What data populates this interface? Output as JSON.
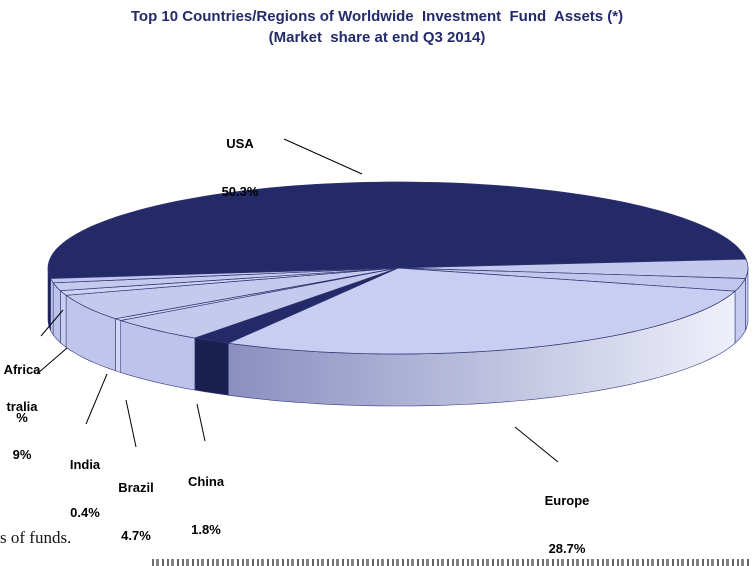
{
  "footer": {
    "visible_fragment": "s of funds."
  },
  "chart_data": {
    "type": "pie",
    "style": "3d",
    "title": "Top 10 Countries/Regions of Worldwide  Investment  Fund  Assets (*)",
    "subtitle": "(Market  share at end Q3 2014)",
    "unit": "percent market share",
    "direction": "clockwise",
    "start_angle_deg": 187,
    "legend": "none (direct labels with leader lines)",
    "colors": {
      "dark_navy": "#232A67",
      "lavender": "#C5C9EE",
      "title_text": "#232B6B",
      "label_text": "#000000"
    },
    "europe_side_gradient": [
      "#8A8FC0",
      "#EEF0FB"
    ],
    "slices": [
      {
        "name": "usa",
        "label_lines": [
          "USA",
          "50.3%"
        ],
        "pct": 50.3,
        "estimated": false,
        "top": "#232A67",
        "side": "#1B2152"
      },
      {
        "name": "unlabeled-right-1",
        "label_lines": null,
        "pct": 3.6,
        "estimated": true,
        "top": "#C5C9EE",
        "side": "#CBD0F1"
      },
      {
        "name": "unlabeled-right-2",
        "label_lines": null,
        "pct": 2.4,
        "estimated": true,
        "top": "#C2C6EC",
        "side": "#C7CCEF"
      },
      {
        "name": "europe",
        "label_lines": [
          "Europe",
          "28.7%"
        ],
        "pct": 28.7,
        "estimated": false,
        "top": "#C9CDF1",
        "side": "europe-gradient"
      },
      {
        "name": "china",
        "label_lines": [
          "China",
          "1.8%"
        ],
        "pct": 1.8,
        "estimated": false,
        "top": "#232A67",
        "side": "#191F4E"
      },
      {
        "name": "brazil",
        "label_lines": [
          "Brazil",
          "4.7%"
        ],
        "pct": 4.7,
        "estimated": false,
        "top": "#C5C9EE",
        "side": "#BEC3EB"
      },
      {
        "name": "india",
        "label_lines": [
          "India",
          "0.4%"
        ],
        "pct": 0.4,
        "estimated": false,
        "top": "#CDD1F3",
        "side": "#D3D6F4"
      },
      {
        "name": "australia",
        "label_lines": [
          "tralia",
          "9%"
        ],
        "pct": 4.9,
        "estimated": true,
        "top": "#C5C9EE",
        "side": "#C0C5EC"
      },
      {
        "name": "africa",
        "label_lines": [
          "Africa",
          "%"
        ],
        "pct": 0.9,
        "estimated": true,
        "top": "#CDD1F3",
        "side": "#C9CDEF"
      },
      {
        "name": "unlabeled-left-1",
        "label_lines": null,
        "pct": 1.5,
        "estimated": true,
        "top": "#C5C9EE",
        "side": "#BDC2EA"
      },
      {
        "name": "unlabeled-left-2",
        "label_lines": null,
        "pct": 0.8,
        "estimated": true,
        "top": "#C2C6EC",
        "side": "#B9BEE7"
      }
    ],
    "note": "Labels for africa/australia slices are truncated by the image crop at the left edge; label_lines contain only the visible text."
  }
}
